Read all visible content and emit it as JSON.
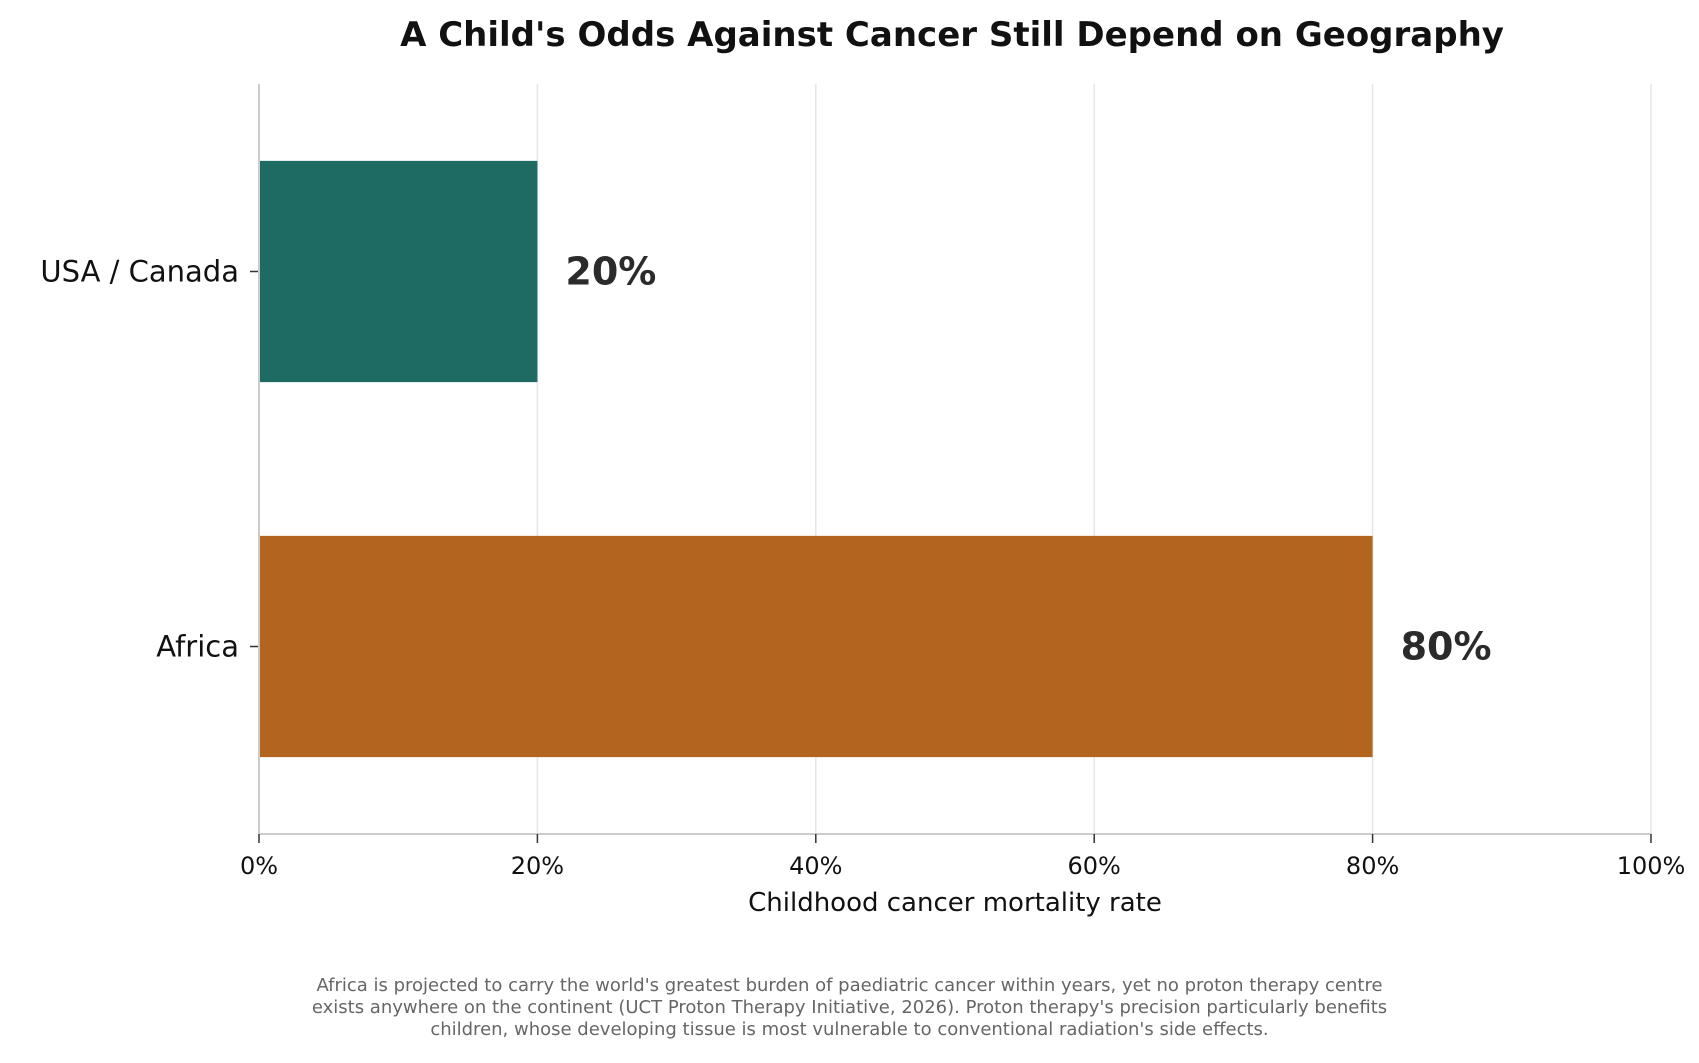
{
  "chart_data": {
    "type": "bar",
    "orientation": "horizontal",
    "title": "A Child's Odds Against Cancer Still Depend on Geography",
    "xlabel": "Childhood cancer mortality rate",
    "ylabel": "",
    "xlim": [
      0,
      100
    ],
    "x_ticks": [
      0,
      20,
      40,
      60,
      80,
      100
    ],
    "x_tick_labels": [
      "0%",
      "20%",
      "40%",
      "60%",
      "80%",
      "100%"
    ],
    "grid": "vertical",
    "legend": "none",
    "categories": [
      "USA / Canada",
      "Africa"
    ],
    "values": [
      20,
      80
    ],
    "data_labels": [
      "20%",
      "80%"
    ],
    "colors": [
      "#1d6b63",
      "#b3651f"
    ]
  },
  "caption": {
    "lines": [
      "Africa is projected to carry the world's greatest burden of paediatric cancer within years, yet no proton therapy centre",
      "exists anywhere on the continent (UCT Proton Therapy Initiative, 2026). Proton therapy's precision particularly benefits",
      "children, whose developing tissue is most vulnerable to conventional radiation's side effects."
    ]
  },
  "theme": {
    "grid_color": "#e6e6e6",
    "axis_color": "#cccccc",
    "text_color": "#111111",
    "data_label_color": "#2b2b2b"
  }
}
